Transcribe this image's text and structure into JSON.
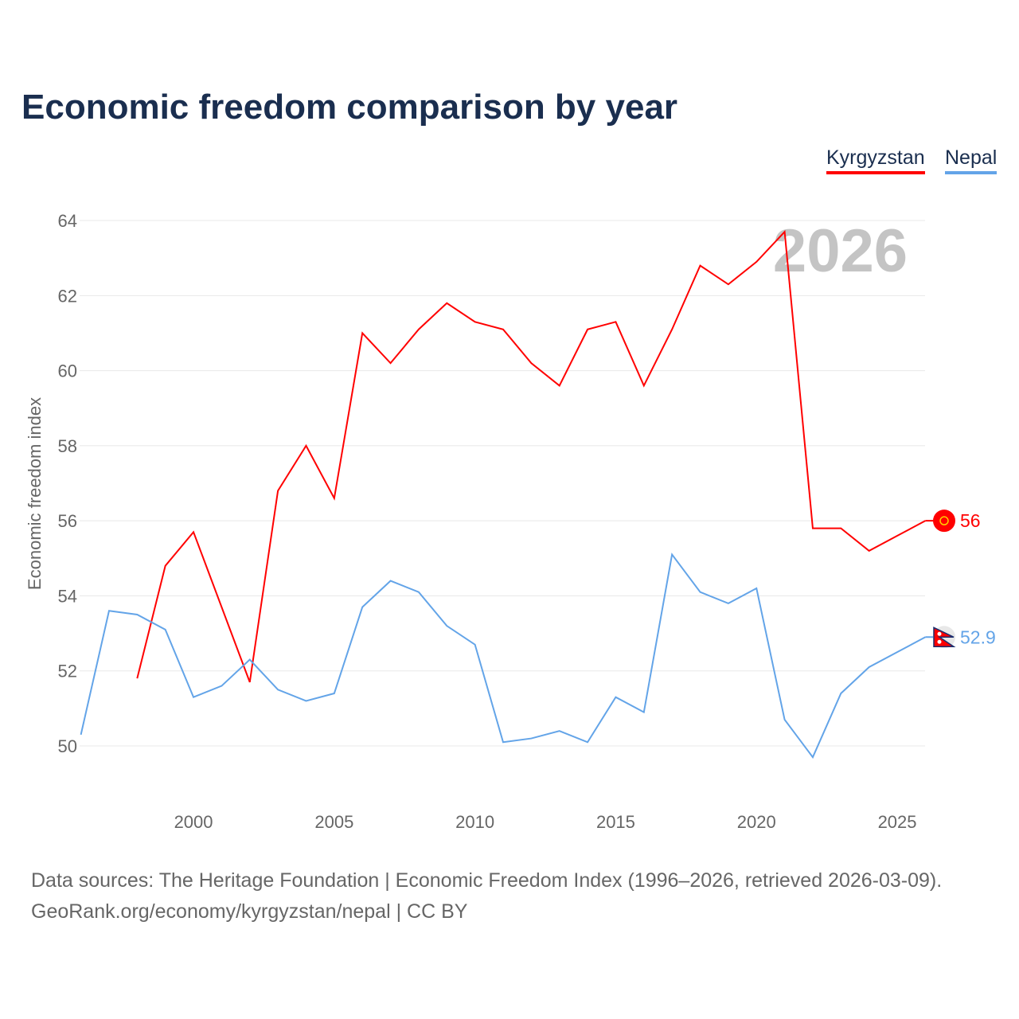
{
  "title": "Economic freedom comparison by year",
  "footer": {
    "line1": "Data sources: The Heritage Foundation | Economic Freedom Index (1996–2026, retrieved 2026-03-09).",
    "line2": "GeoRank.org/economy/kyrgyzstan/nepal | CC BY"
  },
  "chart_data": {
    "type": "line",
    "title": "Economic freedom comparison by year",
    "ylabel": "Economic freedom index",
    "xlabel": "",
    "ylim": [
      48.5,
      64.5
    ],
    "xlim": [
      1996,
      2026
    ],
    "yticks": [
      50,
      52,
      54,
      56,
      58,
      60,
      62,
      64
    ],
    "xticks": [
      2000,
      2005,
      2010,
      2015,
      2020,
      2025
    ],
    "year_label": "2026",
    "legend_position": "top-right",
    "series": [
      {
        "name": "Kyrgyzstan",
        "color": "#ff0000",
        "end_label": "56",
        "x": [
          1998,
          1999,
          2000,
          2002,
          2003,
          2004,
          2005,
          2006,
          2007,
          2008,
          2009,
          2010,
          2011,
          2012,
          2013,
          2014,
          2015,
          2016,
          2017,
          2018,
          2019,
          2020,
          2021,
          2022,
          2023,
          2024,
          2025,
          2026
        ],
        "values": [
          51.8,
          54.8,
          55.7,
          51.7,
          56.8,
          58.0,
          56.6,
          61.0,
          60.2,
          61.1,
          61.8,
          61.3,
          61.1,
          60.2,
          59.6,
          61.1,
          61.3,
          59.6,
          61.1,
          62.8,
          62.3,
          62.9,
          63.7,
          55.8,
          55.8,
          55.2,
          55.6,
          56.0
        ]
      },
      {
        "name": "Nepal",
        "color": "#63a4e8",
        "end_label": "52.9",
        "x": [
          1996,
          1997,
          1998,
          1999,
          2000,
          2001,
          2002,
          2003,
          2004,
          2005,
          2006,
          2007,
          2008,
          2009,
          2010,
          2011,
          2012,
          2013,
          2014,
          2015,
          2016,
          2017,
          2018,
          2019,
          2020,
          2021,
          2022,
          2023,
          2024,
          2025,
          2026
        ],
        "values": [
          50.3,
          53.6,
          53.5,
          53.1,
          51.3,
          51.6,
          52.3,
          51.5,
          51.2,
          51.4,
          53.7,
          54.4,
          54.1,
          53.2,
          52.7,
          50.1,
          50.2,
          50.4,
          50.1,
          51.3,
          50.9,
          55.1,
          54.1,
          53.8,
          54.2,
          50.7,
          49.7,
          51.4,
          52.1,
          52.5,
          52.9
        ]
      }
    ]
  }
}
